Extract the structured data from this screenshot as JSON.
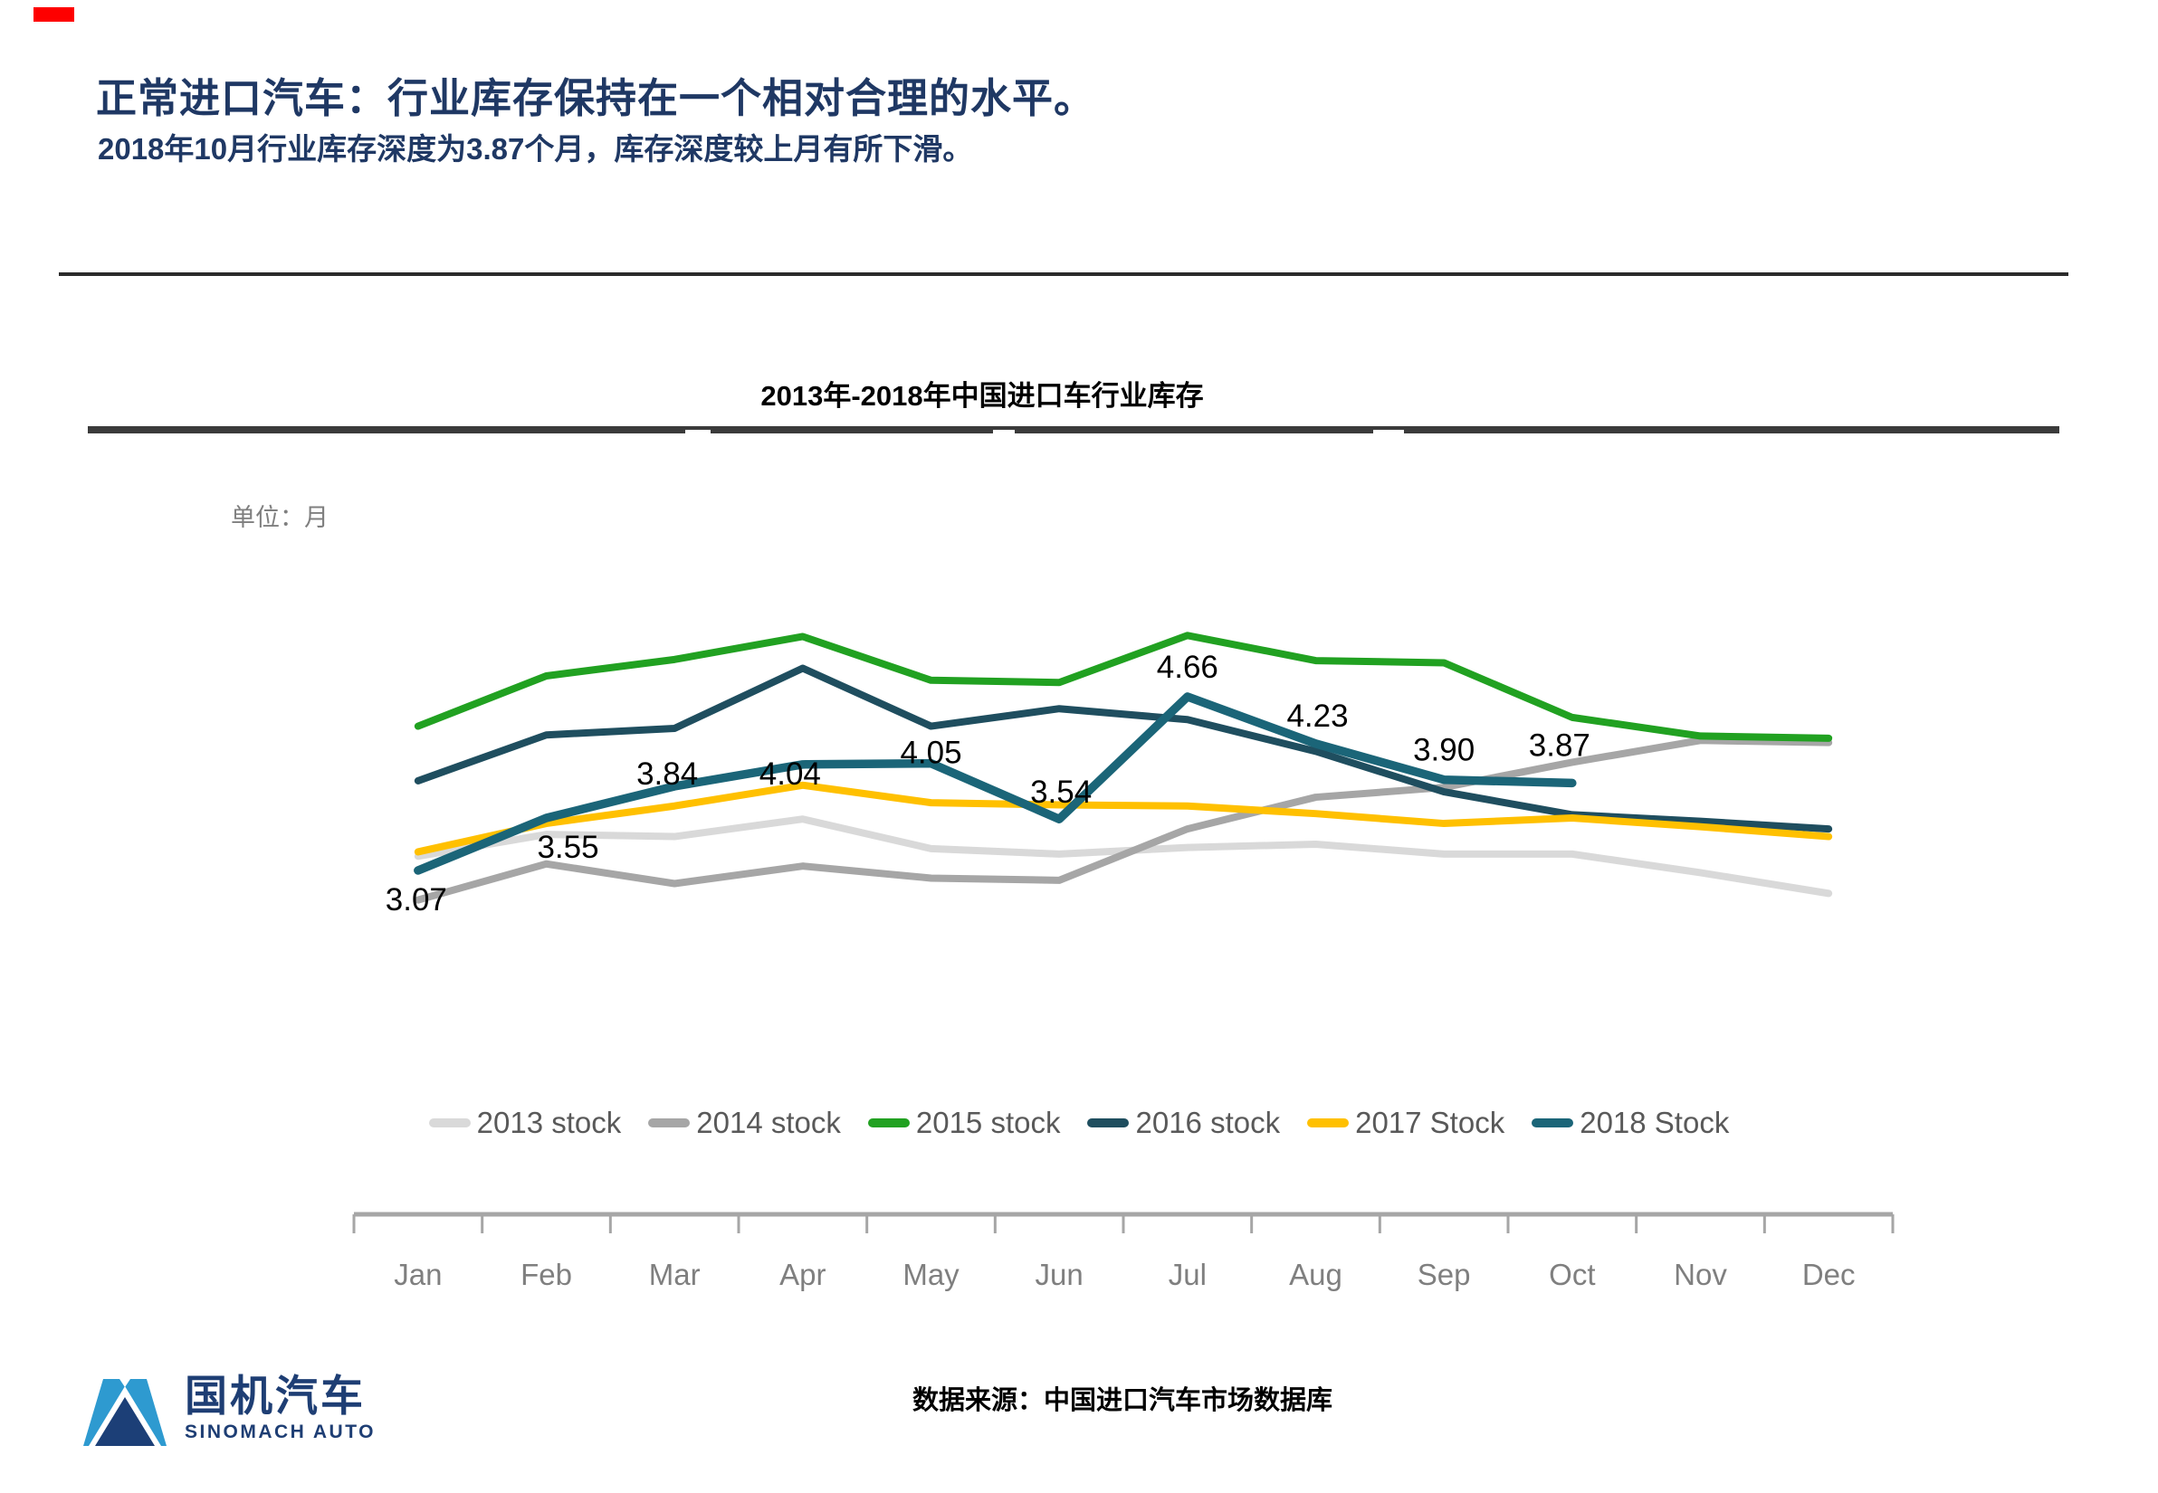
{
  "header": {
    "title": "正常进口汽车：行业库存保持在一个相对合理的水平。",
    "subtitle": "2018年10月行业库存深度为3.87个月，库存深度较上月有所下滑。"
  },
  "chart": {
    "title": "2013年-2018年中国进口车行业库存",
    "unit_label": "单位：月"
  },
  "chart_data": {
    "type": "line",
    "title": "2013年-2018年中国进口车行业库存",
    "unit": "月",
    "categories": [
      "Jan",
      "Feb",
      "Mar",
      "Apr",
      "May",
      "Jun",
      "Jul",
      "Aug",
      "Sep",
      "Oct",
      "Nov",
      "Dec"
    ],
    "ylim": [
      2.6,
      5.4
    ],
    "grid": false,
    "legend_position": "bottom",
    "axis_color": "#A6A6A6",
    "tick_label_color": "#7F7F7F",
    "legend_text_color": "#595959",
    "data_label_color": "#000000",
    "series": [
      {
        "name": "2013 stock",
        "color": "#D9D9D9",
        "values": [
          3.2,
          3.4,
          3.38,
          3.54,
          3.27,
          3.22,
          3.28,
          3.31,
          3.22,
          3.22,
          3.05,
          2.86
        ]
      },
      {
        "name": "2014 stock",
        "color": "#A6A6A6",
        "values": [
          2.8,
          3.13,
          2.95,
          3.11,
          3.0,
          2.98,
          3.45,
          3.74,
          3.83,
          4.06,
          4.26,
          4.24
        ]
      },
      {
        "name": "2015 stock",
        "color": "#21A121",
        "values": [
          4.39,
          4.85,
          5.0,
          5.21,
          4.81,
          4.79,
          5.22,
          4.99,
          4.97,
          4.47,
          4.3,
          4.28
        ]
      },
      {
        "name": "2016 stock",
        "color": "#1F4E5F",
        "values": [
          3.89,
          4.31,
          4.37,
          4.92,
          4.39,
          4.55,
          4.45,
          4.16,
          3.79,
          3.58,
          3.52,
          3.45
        ]
      },
      {
        "name": "2017 Stock",
        "color": "#FFC000",
        "values": [
          3.24,
          3.5,
          3.66,
          3.85,
          3.69,
          3.67,
          3.66,
          3.59,
          3.5,
          3.55,
          3.47,
          3.38
        ]
      },
      {
        "name": "2018 Stock",
        "color": "#1B6578",
        "values": [
          3.07,
          3.55,
          3.84,
          4.04,
          4.05,
          3.54,
          4.66,
          4.23,
          3.9,
          3.87
        ],
        "point_labels": [
          "3.07",
          "3.55",
          "3.84",
          "4.04",
          "4.05",
          "3.54",
          "4.66",
          "4.23",
          "3.90",
          "3.87"
        ],
        "label_offsets": [
          [
            -2,
            32
          ],
          [
            24,
            32
          ],
          [
            -8,
            -14
          ],
          [
            -14,
            10
          ],
          [
            0,
            -12
          ],
          [
            2,
            -30
          ],
          [
            0,
            -33
          ],
          [
            2,
            -31
          ],
          [
            0,
            -33
          ],
          [
            -14,
            -42
          ]
        ]
      }
    ]
  },
  "footer": {
    "source": "数据来源：中国进口汽车市场数据库",
    "logo_cn": "国机汽车",
    "logo_en": "SINOMACH AUTO"
  }
}
